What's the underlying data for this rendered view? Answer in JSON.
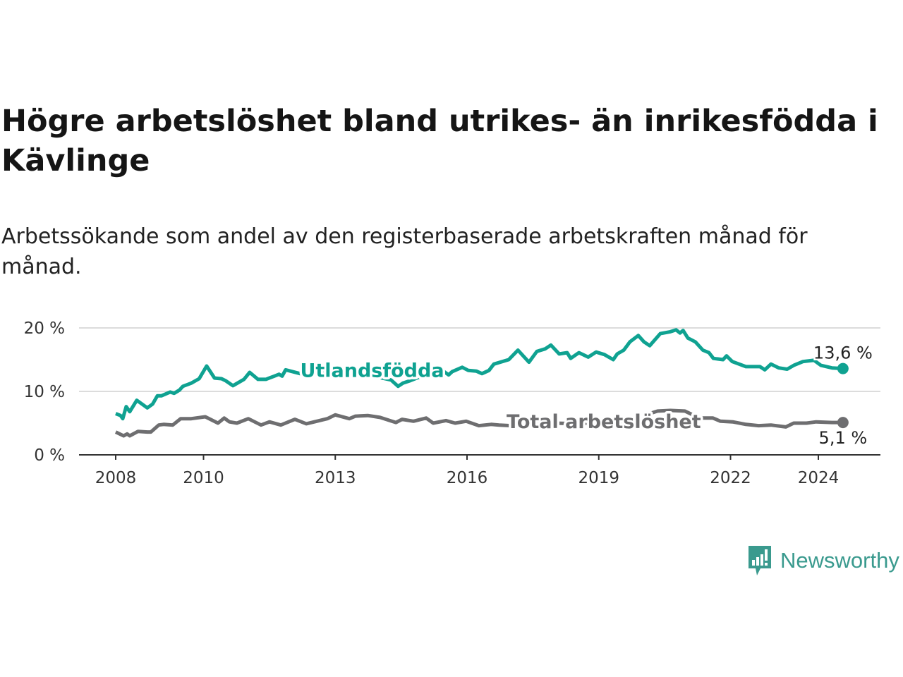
{
  "title": "Högre arbetslöshet bland utrikes- än inrikesfödda i Kävlinge",
  "subtitle": "Arbetssökande som andel av den registerbaserade arbetskraften månad för månad.",
  "logo": {
    "text": "Newsworthy",
    "color": "#3a9a8e"
  },
  "chart_data": {
    "type": "line",
    "title": "Högre arbetslöshet bland utrikes- än inrikesfödda i Kävlinge",
    "xlabel": "",
    "ylabel": "",
    "xlim": [
      2008,
      2024.6
    ],
    "ylim": [
      0,
      20
    ],
    "x_ticks": [
      2008,
      2010,
      2013,
      2016,
      2019,
      2022,
      2024
    ],
    "x_tick_labels": [
      "2008",
      "2010",
      "2013",
      "2016",
      "2019",
      "2022",
      "2024"
    ],
    "y_ticks": [
      0,
      10,
      20
    ],
    "y_tick_labels": [
      "0 %",
      "10 %",
      "20 %"
    ],
    "grid": true,
    "series": [
      {
        "name": "Utlandsfödda",
        "color": "#0fa291",
        "end_label": "13,6 %",
        "label_at": [
          2012.2,
          12.3
        ],
        "points": [
          [
            2008.0,
            6.5
          ],
          [
            2008.11,
            6.2
          ],
          [
            2008.16,
            5.7
          ],
          [
            2008.24,
            7.6
          ],
          [
            2008.32,
            6.8
          ],
          [
            2008.48,
            8.6
          ],
          [
            2008.72,
            7.4
          ],
          [
            2008.84,
            8.0
          ],
          [
            2008.95,
            9.3
          ],
          [
            2009.04,
            9.3
          ],
          [
            2009.24,
            9.9
          ],
          [
            2009.33,
            9.7
          ],
          [
            2009.45,
            10.2
          ],
          [
            2009.53,
            10.8
          ],
          [
            2009.72,
            11.3
          ],
          [
            2009.9,
            12.0
          ],
          [
            2010.07,
            14.0
          ],
          [
            2010.25,
            12.1
          ],
          [
            2010.41,
            12.0
          ],
          [
            2010.5,
            11.7
          ],
          [
            2010.67,
            10.9
          ],
          [
            2010.92,
            11.9
          ],
          [
            2011.05,
            13.0
          ],
          [
            2011.24,
            11.9
          ],
          [
            2011.42,
            11.9
          ],
          [
            2011.61,
            12.4
          ],
          [
            2011.72,
            12.7
          ],
          [
            2011.79,
            12.4
          ],
          [
            2011.87,
            13.4
          ],
          [
            2012.2,
            12.8
          ],
          [
            2012.6,
            13.2
          ],
          [
            2013.0,
            12.9
          ],
          [
            2013.5,
            12.5
          ],
          [
            2014.0,
            12.2
          ],
          [
            2014.27,
            11.8
          ],
          [
            2014.43,
            10.8
          ],
          [
            2014.54,
            11.3
          ],
          [
            2014.71,
            11.7
          ],
          [
            2015.23,
            13.1
          ],
          [
            2015.44,
            13.3
          ],
          [
            2015.58,
            12.6
          ],
          [
            2015.66,
            13.1
          ],
          [
            2015.89,
            13.8
          ],
          [
            2016.03,
            13.3
          ],
          [
            2016.21,
            13.2
          ],
          [
            2016.34,
            12.8
          ],
          [
            2016.5,
            13.3
          ],
          [
            2016.61,
            14.3
          ],
          [
            2016.95,
            15.0
          ],
          [
            2017.16,
            16.5
          ],
          [
            2017.41,
            14.6
          ],
          [
            2017.59,
            16.3
          ],
          [
            2017.78,
            16.7
          ],
          [
            2017.91,
            17.3
          ],
          [
            2018.1,
            15.9
          ],
          [
            2018.28,
            16.1
          ],
          [
            2018.36,
            15.2
          ],
          [
            2018.55,
            16.1
          ],
          [
            2018.76,
            15.4
          ],
          [
            2018.94,
            16.2
          ],
          [
            2019.13,
            15.8
          ],
          [
            2019.33,
            15.0
          ],
          [
            2019.42,
            15.9
          ],
          [
            2019.57,
            16.5
          ],
          [
            2019.71,
            17.8
          ],
          [
            2019.9,
            18.8
          ],
          [
            2020.03,
            17.8
          ],
          [
            2020.16,
            17.2
          ],
          [
            2020.4,
            19.1
          ],
          [
            2020.63,
            19.4
          ],
          [
            2020.76,
            19.7
          ],
          [
            2020.85,
            19.2
          ],
          [
            2020.92,
            19.6
          ],
          [
            2021.03,
            18.4
          ],
          [
            2021.2,
            17.8
          ],
          [
            2021.37,
            16.5
          ],
          [
            2021.51,
            16.1
          ],
          [
            2021.61,
            15.2
          ],
          [
            2021.83,
            15.0
          ],
          [
            2021.91,
            15.6
          ],
          [
            2022.04,
            14.7
          ],
          [
            2022.35,
            13.9
          ],
          [
            2022.67,
            13.9
          ],
          [
            2022.78,
            13.4
          ],
          [
            2022.92,
            14.3
          ],
          [
            2023.1,
            13.7
          ],
          [
            2023.29,
            13.5
          ],
          [
            2023.44,
            14.1
          ],
          [
            2023.65,
            14.7
          ],
          [
            2023.9,
            14.9
          ],
          [
            2024.06,
            14.1
          ],
          [
            2024.31,
            13.7
          ],
          [
            2024.56,
            13.6
          ]
        ]
      },
      {
        "name": "Total arbetslöshet",
        "color": "#6e6e70",
        "end_label": "5,1 %",
        "label_at": [
          2016.9,
          4.2
        ],
        "points": [
          [
            2008.0,
            3.6
          ],
          [
            2008.18,
            3.0
          ],
          [
            2008.26,
            3.3
          ],
          [
            2008.32,
            3.0
          ],
          [
            2008.51,
            3.7
          ],
          [
            2008.72,
            3.6
          ],
          [
            2008.8,
            3.6
          ],
          [
            2008.98,
            4.7
          ],
          [
            2009.09,
            4.8
          ],
          [
            2009.3,
            4.7
          ],
          [
            2009.48,
            5.7
          ],
          [
            2009.72,
            5.7
          ],
          [
            2010.04,
            6.0
          ],
          [
            2010.33,
            5.0
          ],
          [
            2010.47,
            5.8
          ],
          [
            2010.59,
            5.2
          ],
          [
            2010.76,
            5.0
          ],
          [
            2011.02,
            5.7
          ],
          [
            2011.31,
            4.7
          ],
          [
            2011.5,
            5.2
          ],
          [
            2011.76,
            4.7
          ],
          [
            2012.08,
            5.6
          ],
          [
            2012.34,
            4.9
          ],
          [
            2012.82,
            5.7
          ],
          [
            2013.0,
            6.3
          ],
          [
            2013.32,
            5.7
          ],
          [
            2013.46,
            6.1
          ],
          [
            2013.74,
            6.2
          ],
          [
            2014.02,
            5.9
          ],
          [
            2014.38,
            5.1
          ],
          [
            2014.52,
            5.6
          ],
          [
            2014.78,
            5.3
          ],
          [
            2015.07,
            5.8
          ],
          [
            2015.23,
            5.0
          ],
          [
            2015.52,
            5.4
          ],
          [
            2015.73,
            5.0
          ],
          [
            2015.98,
            5.3
          ],
          [
            2016.27,
            4.6
          ],
          [
            2016.55,
            4.8
          ],
          [
            2016.73,
            4.7
          ],
          [
            2017.0,
            4.6
          ],
          [
            2017.5,
            4.8
          ],
          [
            2018.0,
            5.0
          ],
          [
            2018.5,
            4.9
          ],
          [
            2019.0,
            5.1
          ],
          [
            2019.5,
            5.0
          ],
          [
            2020.0,
            4.9
          ],
          [
            2020.2,
            6.6
          ],
          [
            2020.34,
            6.9
          ],
          [
            2020.63,
            7.0
          ],
          [
            2020.96,
            6.9
          ],
          [
            2021.2,
            6.1
          ],
          [
            2021.37,
            5.8
          ],
          [
            2021.6,
            5.8
          ],
          [
            2021.77,
            5.3
          ],
          [
            2022.05,
            5.2
          ],
          [
            2022.35,
            4.8
          ],
          [
            2022.64,
            4.6
          ],
          [
            2022.92,
            4.7
          ],
          [
            2023.26,
            4.4
          ],
          [
            2023.44,
            5.0
          ],
          [
            2023.73,
            5.0
          ],
          [
            2023.95,
            5.2
          ],
          [
            2024.31,
            5.1
          ],
          [
            2024.56,
            5.1
          ]
        ]
      }
    ]
  }
}
